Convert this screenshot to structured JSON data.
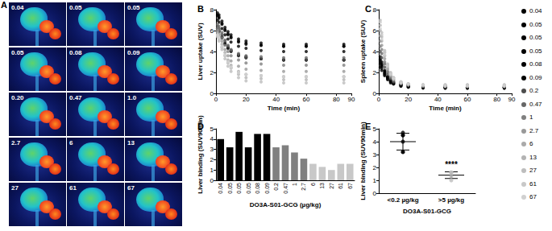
{
  "chart_data": [
    {
      "type": "image_grid",
      "title": "A",
      "labels": [
        "0.04",
        "0.05",
        "0.05",
        "0.05",
        "0.08",
        "0.09",
        "0.20",
        "0.47",
        "1.0",
        "2.7",
        "6",
        "13",
        "27",
        "61",
        "67"
      ]
    },
    {
      "type": "scatter",
      "title": "B",
      "xlabel": "Time (min)",
      "ylabel": "Liver uptake (SUV)",
      "xlim": [
        0,
        90
      ],
      "xticks": [
        0,
        20,
        40,
        60,
        80
      ],
      "ylim": [
        0,
        8
      ],
      "yticks": [
        0,
        2,
        4,
        6,
        8
      ],
      "grid": false,
      "marker": "circle",
      "legend": "right",
      "x": [
        1,
        2,
        4,
        6,
        8,
        10,
        15,
        20,
        30,
        45,
        60,
        85
      ],
      "series": [
        {
          "name": "0.04",
          "color": "#000000",
          "values": [
            7.0,
            6.8,
            6.2,
            5.6,
            5.2,
            4.9,
            4.5,
            4.3,
            4.1,
            4.0,
            4.0,
            4.0
          ]
        },
        {
          "name": "0.05",
          "color": "#000000",
          "values": [
            6.2,
            6.0,
            5.4,
            4.8,
            4.4,
            4.1,
            3.7,
            3.5,
            3.3,
            3.2,
            3.2,
            3.2
          ]
        },
        {
          "name": "0.05",
          "color": "#000000",
          "values": [
            7.7,
            7.5,
            6.9,
            6.3,
            5.9,
            5.6,
            5.2,
            5.0,
            4.8,
            4.7,
            4.7,
            4.7
          ]
        },
        {
          "name": "0.05",
          "color": "#000000",
          "values": [
            6.0,
            5.9,
            5.3,
            4.7,
            4.3,
            4.0,
            3.6,
            3.4,
            3.3,
            3.2,
            3.2,
            3.2
          ]
        },
        {
          "name": "0.08",
          "color": "#000000",
          "values": [
            7.5,
            7.3,
            6.7,
            6.1,
            5.7,
            5.4,
            5.0,
            4.8,
            4.6,
            4.5,
            4.5,
            4.5
          ]
        },
        {
          "name": "0.09",
          "color": "#000000",
          "values": [
            7.4,
            7.2,
            6.6,
            6.0,
            5.6,
            5.3,
            4.9,
            4.7,
            4.6,
            4.5,
            4.5,
            4.5
          ]
        },
        {
          "name": "0.2",
          "color": "#4d4d4d",
          "values": [
            6.4,
            6.2,
            5.6,
            5.0,
            4.5,
            4.1,
            3.7,
            3.4,
            3.3,
            3.2,
            3.2,
            3.2
          ]
        },
        {
          "name": "0.47",
          "color": "#666666",
          "values": [
            6.6,
            6.4,
            5.8,
            5.1,
            4.6,
            4.2,
            3.8,
            3.6,
            3.5,
            3.4,
            3.4,
            3.4
          ]
        },
        {
          "name": "1",
          "color": "#808080",
          "values": [
            6.2,
            6.0,
            5.3,
            4.6,
            4.0,
            3.6,
            3.2,
            2.9,
            2.8,
            2.7,
            2.7,
            2.7
          ]
        },
        {
          "name": "2.7",
          "color": "#999999",
          "values": [
            6.0,
            5.7,
            5.0,
            4.2,
            3.6,
            3.1,
            2.6,
            2.3,
            2.2,
            2.1,
            2.1,
            2.1
          ]
        },
        {
          "name": "6",
          "color": "#aaaaaa",
          "values": [
            5.8,
            5.5,
            4.7,
            3.9,
            3.2,
            2.7,
            2.1,
            1.8,
            1.7,
            1.6,
            1.6,
            1.6
          ]
        },
        {
          "name": "13",
          "color": "#b3b3b3",
          "values": [
            5.6,
            5.2,
            4.4,
            3.6,
            2.9,
            2.4,
            1.8,
            1.5,
            1.4,
            1.3,
            1.3,
            1.3
          ]
        },
        {
          "name": "27",
          "color": "#bdbdbd",
          "values": [
            5.4,
            5.0,
            4.2,
            3.3,
            2.6,
            2.1,
            1.5,
            1.2,
            1.1,
            1.0,
            1.0,
            1.0
          ]
        },
        {
          "name": "61",
          "color": "#c8c8c8",
          "values": [
            5.5,
            5.2,
            4.4,
            3.6,
            3.0,
            2.5,
            2.0,
            1.8,
            1.7,
            1.6,
            1.6,
            1.6
          ]
        },
        {
          "name": "67",
          "color": "#d0d0d0",
          "values": [
            5.6,
            5.3,
            4.5,
            3.7,
            3.0,
            2.5,
            2.0,
            1.8,
            1.7,
            1.6,
            1.6,
            1.6
          ]
        }
      ]
    },
    {
      "type": "scatter",
      "title": "C",
      "xlabel": "Time (min)",
      "ylabel": "Spleen uptake (SUV)",
      "xlim": [
        0,
        90
      ],
      "xticks": [
        0,
        20,
        40,
        60,
        80
      ],
      "ylim": [
        0,
        8
      ],
      "yticks": [
        0,
        2,
        4,
        6,
        8
      ],
      "grid": false,
      "marker": "circle",
      "x": [
        1,
        2,
        4,
        6,
        8,
        10,
        15,
        20,
        30,
        45,
        60,
        85
      ],
      "series": [
        {
          "name": "0.04",
          "color": "#000000",
          "values": [
            2.8,
            2.4,
            1.8,
            1.4,
            1.1,
            0.9,
            0.7,
            0.6,
            0.6,
            0.5,
            0.5,
            0.5
          ]
        },
        {
          "name": "0.05",
          "color": "#000000",
          "values": [
            3.2,
            2.7,
            2.0,
            1.5,
            1.2,
            1.0,
            0.8,
            0.7,
            0.6,
            0.6,
            0.6,
            0.6
          ]
        },
        {
          "name": "0.05",
          "color": "#000000",
          "values": [
            2.5,
            2.2,
            1.7,
            1.3,
            1.0,
            0.9,
            0.7,
            0.6,
            0.5,
            0.5,
            0.5,
            0.5
          ]
        },
        {
          "name": "0.05",
          "color": "#000000",
          "values": [
            3.0,
            2.6,
            1.9,
            1.5,
            1.2,
            1.0,
            0.8,
            0.7,
            0.6,
            0.6,
            0.6,
            0.6
          ]
        },
        {
          "name": "0.08",
          "color": "#000000",
          "values": [
            3.5,
            3.0,
            2.2,
            1.6,
            1.3,
            1.1,
            0.8,
            0.7,
            0.6,
            0.6,
            0.6,
            0.6
          ]
        },
        {
          "name": "0.09",
          "color": "#000000",
          "values": [
            3.3,
            2.8,
            2.1,
            1.6,
            1.2,
            1.0,
            0.8,
            0.7,
            0.6,
            0.6,
            0.6,
            0.6
          ]
        },
        {
          "name": "0.2",
          "color": "#4d4d4d",
          "values": [
            4.0,
            3.4,
            2.5,
            1.8,
            1.4,
            1.1,
            0.9,
            0.8,
            0.7,
            0.6,
            0.6,
            0.6
          ]
        },
        {
          "name": "0.47",
          "color": "#666666",
          "values": [
            4.5,
            3.8,
            2.8,
            2.0,
            1.5,
            1.2,
            0.9,
            0.8,
            0.7,
            0.7,
            0.7,
            0.7
          ]
        },
        {
          "name": "1",
          "color": "#808080",
          "values": [
            5.0,
            4.2,
            3.0,
            2.1,
            1.6,
            1.3,
            1.0,
            0.8,
            0.7,
            0.7,
            0.7,
            0.7
          ]
        },
        {
          "name": "2.7",
          "color": "#999999",
          "values": [
            5.5,
            4.6,
            3.3,
            2.3,
            1.7,
            1.3,
            1.0,
            0.8,
            0.7,
            0.7,
            0.7,
            0.7
          ]
        },
        {
          "name": "6",
          "color": "#aaaaaa",
          "values": [
            6.0,
            5.0,
            3.6,
            2.5,
            1.8,
            1.4,
            1.0,
            0.9,
            0.8,
            0.7,
            0.7,
            0.7
          ]
        },
        {
          "name": "13",
          "color": "#b3b3b3",
          "values": [
            6.5,
            5.4,
            3.9,
            2.7,
            1.9,
            1.5,
            1.1,
            0.9,
            0.8,
            0.8,
            0.8,
            0.8
          ]
        },
        {
          "name": "27",
          "color": "#bdbdbd",
          "values": [
            7.0,
            5.8,
            4.1,
            2.8,
            2.0,
            1.5,
            1.1,
            0.9,
            0.8,
            0.8,
            0.8,
            0.8
          ]
        },
        {
          "name": "61",
          "color": "#c8c8c8",
          "values": [
            6.8,
            5.6,
            4.0,
            2.7,
            1.9,
            1.5,
            1.1,
            0.9,
            0.8,
            0.8,
            0.8,
            0.8
          ]
        },
        {
          "name": "67",
          "color": "#d0d0d0",
          "values": [
            6.2,
            5.2,
            3.7,
            2.6,
            1.8,
            1.4,
            1.0,
            0.9,
            0.8,
            0.7,
            0.7,
            0.7
          ]
        }
      ]
    },
    {
      "type": "bar",
      "title": "D",
      "xlabel": "DO3A-S01-GCG (µg/kg)",
      "ylabel": "Liver binding (SUV90min)",
      "ylim": [
        0,
        5
      ],
      "yticks": [
        0,
        1,
        2,
        3,
        4,
        5
      ],
      "grid": false,
      "categories": [
        "0.04",
        "0.05",
        "0.05",
        "0.05",
        "0.08",
        "0.09",
        "0.2",
        "0.47",
        "1",
        "2.7",
        "6",
        "13",
        "27",
        "61",
        "67"
      ],
      "values": [
        4.0,
        3.2,
        4.7,
        3.2,
        4.5,
        4.5,
        3.2,
        3.4,
        2.7,
        2.1,
        1.6,
        1.3,
        1.0,
        1.6,
        1.6
      ],
      "colors": [
        "#000000",
        "#000000",
        "#000000",
        "#000000",
        "#000000",
        "#000000",
        "#808080",
        "#808080",
        "#808080",
        "#808080",
        "#c8c8c8",
        "#c8c8c8",
        "#c8c8c8",
        "#c8c8c8",
        "#c8c8c8"
      ]
    },
    {
      "type": "dotplot",
      "title": "E",
      "xlabel": "DO3A-S01-GCG",
      "ylabel": "Liver binding (SUV90min)",
      "ylim": [
        0,
        5
      ],
      "yticks": [
        0,
        1,
        2,
        3,
        4,
        5
      ],
      "grid": false,
      "marker": "circle",
      "categories": [
        "<0.2 µg/kg",
        ">5 µg/kg"
      ],
      "points": [
        [
          4.0,
          3.2,
          4.7,
          3.2,
          4.5,
          4.5
        ],
        [
          1.6,
          1.3,
          1.0,
          1.6,
          1.6
        ]
      ],
      "means": [
        4.0,
        1.4
      ],
      "errors": [
        0.65,
        0.26
      ],
      "colors": [
        "#000000",
        "#bdbdbd"
      ],
      "annotations": [
        {
          "category": ">5 µg/kg",
          "text": "****"
        }
      ]
    }
  ]
}
